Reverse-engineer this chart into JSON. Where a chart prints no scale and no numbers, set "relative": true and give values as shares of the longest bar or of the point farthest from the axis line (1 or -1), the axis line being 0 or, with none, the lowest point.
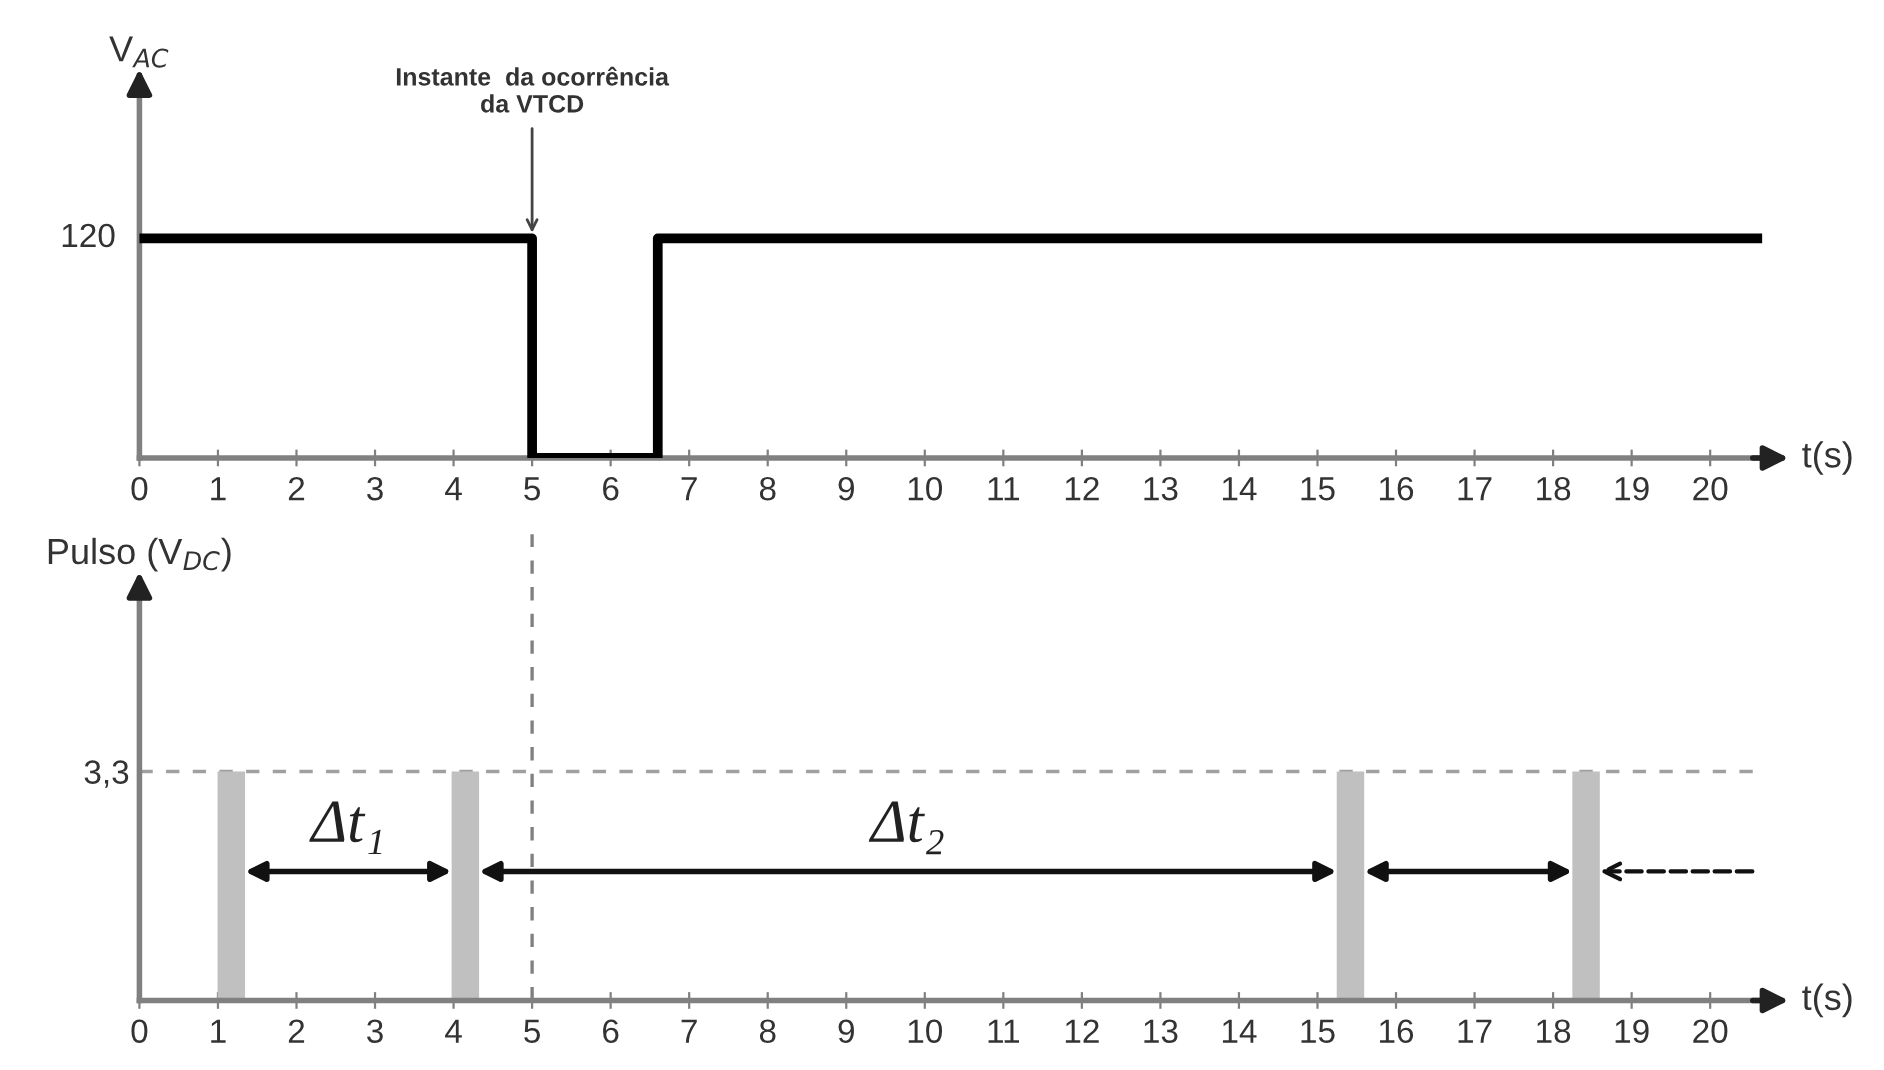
{
  "chart_data": [
    {
      "type": "step",
      "ylabel": "V$_{AC}$",
      "xlabel": "t(s)",
      "x": [
        0,
        5,
        6.6,
        20.6
      ],
      "relative": true,
      "series": [
        {
          "color": "#000000",
          "values": [
            1,
            0,
            1,
            1
          ]
        }
      ],
      "xlim": [
        0,
        20.75
      ],
      "xticks": [
        0,
        1,
        2,
        3,
        4,
        5,
        6,
        7,
        8,
        9,
        10,
        11,
        12,
        13,
        14,
        15,
        16,
        17,
        18,
        19,
        20
      ],
      "grid": false,
      "legend": false,
      "annotations": [
        "120",
        {
          "text": "Instante  da ocorrência\nda VTCD",
          "x": 5,
          "y": 1
        }
      ]
    },
    {
      "type": "bar",
      "ylabel": "Pulso (V$_{DC}$)",
      "xlabel": "t(s)",
      "x": [
        1.17,
        4.15,
        15.42,
        18.42
      ],
      "series": [
        {
          "color": "#c0c0c0",
          "values": [
            3.3,
            3.3,
            3.3,
            3.3
          ]
        }
      ],
      "xlim": [
        0,
        20.75
      ],
      "ylim": [
        0,
        6
      ],
      "xticks": [
        0,
        1,
        2,
        3,
        4,
        5,
        6,
        7,
        8,
        9,
        10,
        11,
        12,
        13,
        14,
        15,
        16,
        17,
        18,
        19,
        20
      ],
      "yticks": [
        {
          "value": 3.3,
          "label": "3,3"
        }
      ],
      "grid": false,
      "legend": false,
      "ref_lines": [
        {
          "axis": "y",
          "value": 3.3,
          "line_style": "dashed",
          "color": "#a0a0a0"
        },
        {
          "axis": "x",
          "value": 5,
          "line_style": "dashed",
          "color": "#808080"
        }
      ],
      "annotations": [
        "Δt₁",
        "Δt₂"
      ]
    }
  ]
}
